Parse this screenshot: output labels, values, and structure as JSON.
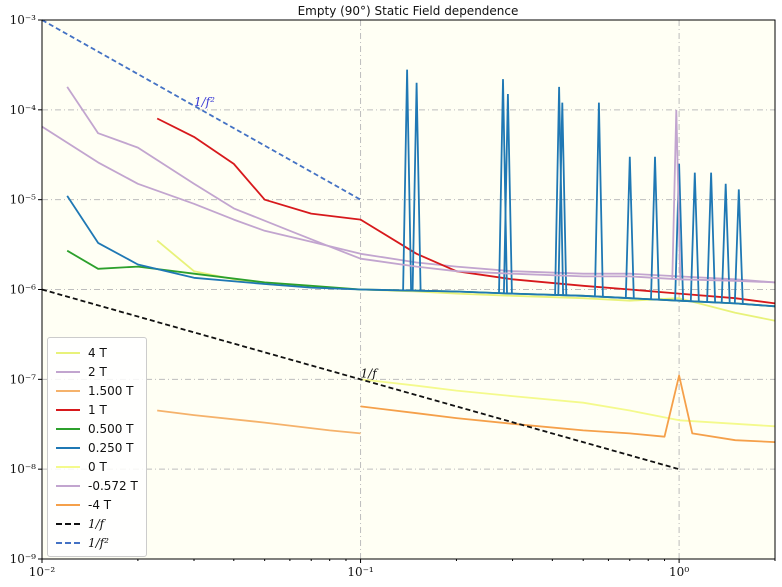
{
  "chart_data": {
    "type": "line",
    "title": "Empty (90°) Static Field dependence",
    "xscale": "log",
    "yscale": "log",
    "xlim": [
      0.01,
      2
    ],
    "ylim": [
      1e-09,
      0.001
    ],
    "xticks": [
      {
        "value": 0.01,
        "label": "10⁻²"
      },
      {
        "value": 0.1,
        "label": "10⁻¹"
      },
      {
        "value": 1,
        "label": "10⁰"
      }
    ],
    "yticks": [
      {
        "value": 0.001,
        "label": "10⁻³"
      },
      {
        "value": 0.0001,
        "label": "10⁻⁴"
      },
      {
        "value": 1e-05,
        "label": "10⁻⁵"
      },
      {
        "value": 1e-06,
        "label": "10⁻⁶"
      },
      {
        "value": 1e-07,
        "label": "10⁻⁷"
      },
      {
        "value": 1e-08,
        "label": "10⁻⁸"
      },
      {
        "value": 1e-09,
        "label": "10⁻⁹"
      }
    ],
    "grid": true,
    "legend_position": "lower-left",
    "series": [
      {
        "name": "4 T",
        "color": "#e8f27a",
        "x": [
          0.023,
          0.03,
          0.04,
          0.05,
          0.06,
          0.08,
          0.1,
          0.15,
          0.2,
          0.3,
          0.5,
          0.7,
          1.0,
          1.5,
          2.0
        ],
        "y": [
          3.5e-06,
          1.6e-06,
          1.3e-06,
          1.15e-06,
          1.1e-06,
          1.05e-06,
          1e-06,
          9.5e-07,
          9e-07,
          8.5e-07,
          8e-07,
          7.5e-07,
          8e-07,
          5.5e-07,
          4.5e-07
        ]
      },
      {
        "name": "2 T",
        "color": "#c2a5cf",
        "x": [
          0.01,
          0.015,
          0.02,
          0.03,
          0.04,
          0.05,
          0.07,
          0.1,
          0.15,
          0.2,
          0.3,
          0.5,
          0.7,
          1.0,
          1.5,
          2.0
        ],
        "y": [
          6.5e-05,
          2.6e-05,
          1.5e-05,
          9e-06,
          6e-06,
          4.5e-06,
          3.4e-06,
          2.5e-06,
          2e-06,
          1.8e-06,
          1.6e-06,
          1.5e-06,
          1.5e-06,
          1.4e-06,
          1.3e-06,
          1.2e-06
        ]
      },
      {
        "name": "1.500 T",
        "color": "#f5b26b",
        "x": [
          0.023,
          0.03,
          0.05,
          0.08,
          0.1
        ],
        "y": [
          4.5e-08,
          4e-08,
          3.3e-08,
          2.7e-08,
          2.5e-08
        ]
      },
      {
        "name": "1 T",
        "color": "#d7191c",
        "x": [
          0.023,
          0.03,
          0.04,
          0.05,
          0.07,
          0.1,
          0.15,
          0.2,
          0.3,
          0.5,
          0.7,
          1.0,
          1.5,
          2.0
        ],
        "y": [
          8e-05,
          5e-05,
          2.5e-05,
          1e-05,
          7e-06,
          6e-06,
          2.5e-06,
          1.6e-06,
          1.3e-06,
          1.1e-06,
          1e-06,
          9e-07,
          8e-07,
          7e-07
        ]
      },
      {
        "name": "0.500 T",
        "color": "#2ca02c",
        "x": [
          0.012,
          0.015,
          0.02,
          0.03,
          0.05,
          0.07,
          0.1,
          0.2,
          0.3,
          0.5,
          0.7,
          1.0,
          1.5,
          2.0
        ],
        "y": [
          2.7e-06,
          1.7e-06,
          1.8e-06,
          1.5e-06,
          1.2e-06,
          1.1e-06,
          1e-06,
          9.5e-07,
          9e-07,
          8.5e-07,
          8e-07,
          7.5e-07,
          7e-07,
          6.5e-07
        ]
      },
      {
        "name": "0.250 T",
        "color": "#1f78b4",
        "x": [
          0.012,
          0.015,
          0.02,
          0.03,
          0.05,
          0.07,
          0.1,
          0.2,
          0.3,
          0.5,
          0.7,
          1.0,
          1.5,
          2.0
        ],
        "y": [
          1.1e-05,
          3.3e-06,
          1.9e-06,
          1.35e-06,
          1.15e-06,
          1.05e-06,
          1e-06,
          9.5e-07,
          9e-07,
          8.5e-07,
          8e-07,
          7.5e-07,
          7e-07,
          6.5e-07
        ],
        "peaks": [
          {
            "x": 0.14,
            "y": 0.00028
          },
          {
            "x": 0.15,
            "y": 0.0002
          },
          {
            "x": 0.28,
            "y": 0.00022
          },
          {
            "x": 0.29,
            "y": 0.00015
          },
          {
            "x": 0.42,
            "y": 0.00018
          },
          {
            "x": 0.43,
            "y": 0.00012
          },
          {
            "x": 0.56,
            "y": 0.00012
          },
          {
            "x": 0.7,
            "y": 3e-05
          },
          {
            "x": 0.84,
            "y": 3e-05
          },
          {
            "x": 1.0,
            "y": 2.5e-05
          },
          {
            "x": 1.12,
            "y": 2e-05
          },
          {
            "x": 1.26,
            "y": 2e-05
          },
          {
            "x": 1.4,
            "y": 1.5e-05
          },
          {
            "x": 1.54,
            "y": 1.3e-05
          }
        ]
      },
      {
        "name": "0 T",
        "color": "#f4fa8c",
        "x": [
          0.1,
          0.15,
          0.2,
          0.3,
          0.5,
          0.7,
          1.0,
          1.5,
          2.0
        ],
        "y": [
          1e-07,
          8.5e-08,
          7.5e-08,
          6.5e-08,
          5.5e-08,
          4.5e-08,
          3.5e-08,
          3.2e-08,
          3e-08
        ]
      },
      {
        "name": "-0.572 T",
        "color": "#c2a5cf",
        "x": [
          0.012,
          0.015,
          0.02,
          0.03,
          0.04,
          0.06,
          0.08,
          0.1,
          0.15,
          0.2,
          0.3,
          0.5,
          0.7,
          1.0,
          1.5,
          2.0
        ],
        "y": [
          0.00018,
          5.5e-05,
          3.8e-05,
          1.5e-05,
          8e-06,
          4.5e-06,
          3e-06,
          2.2e-06,
          1.8e-06,
          1.6e-06,
          1.5e-06,
          1.4e-06,
          1.4e-06,
          1.3e-06,
          1.25e-06,
          1.2e-06
        ],
        "peaks": [
          {
            "x": 0.98,
            "y": 0.0001
          }
        ]
      },
      {
        "name": "-4 T",
        "color": "#f5a04a",
        "x": [
          0.1,
          0.15,
          0.2,
          0.3,
          0.5,
          0.7,
          0.9,
          1.0,
          1.1,
          1.5,
          2.0
        ],
        "y": [
          5e-08,
          4.2e-08,
          3.7e-08,
          3.2e-08,
          2.7e-08,
          2.5e-08,
          2.3e-08,
          1.1e-07,
          2.5e-08,
          2.1e-08,
          2e-08
        ]
      },
      {
        "name": "1/f",
        "color": "#111111",
        "style": "dashed",
        "x": [
          0.01,
          1.0
        ],
        "y": [
          1e-06,
          1e-08
        ]
      },
      {
        "name": "1/f²",
        "color": "#4472c4",
        "style": "dashed",
        "x": [
          0.01,
          0.1
        ],
        "y": [
          0.001,
          1e-05
        ]
      }
    ],
    "annotations": [
      {
        "text": "1/f²",
        "x": 0.03,
        "y": 0.00011,
        "color": "#3b3bd6"
      },
      {
        "text": "1/f",
        "x": 0.1,
        "y": 1.05e-07,
        "color": "#111111"
      }
    ]
  }
}
